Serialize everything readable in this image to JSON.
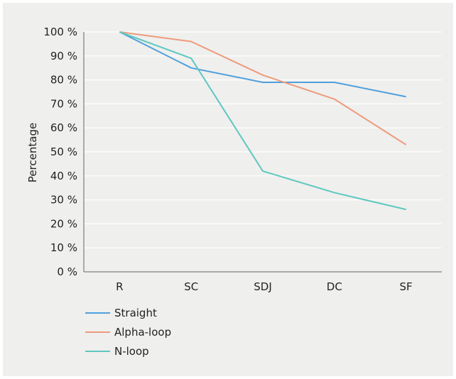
{
  "chart_data": {
    "type": "line",
    "categories": [
      "R",
      "SC",
      "SDJ",
      "DC",
      "SF"
    ],
    "ylabel": "Percentage",
    "xlabel": "",
    "ylim": [
      0,
      100
    ],
    "yticks": [
      "0 %",
      "10 %",
      "20 %",
      "30 %",
      "40 %",
      "50 %",
      "60 %",
      "70 %",
      "80 %",
      "90 %",
      "100 %"
    ],
    "grid": true,
    "legend_position": "bottom-left",
    "series": [
      {
        "name": "Straight",
        "color": "#4fa0dc",
        "values": [
          100,
          85,
          79,
          79,
          73
        ]
      },
      {
        "name": "Alpha-loop",
        "color": "#ee9b7b",
        "values": [
          100,
          96,
          82,
          72,
          53
        ]
      },
      {
        "name": "N-loop",
        "color": "#5ec8bf",
        "values": [
          100,
          89,
          42,
          33,
          26
        ]
      }
    ]
  }
}
